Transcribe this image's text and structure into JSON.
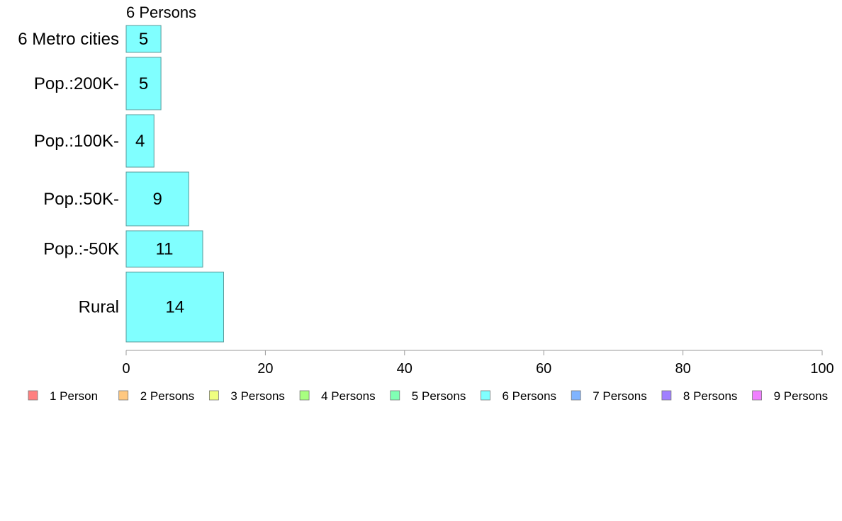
{
  "chart_data": {
    "type": "bar",
    "orientation": "horizontal",
    "title": "6 Persons",
    "categories": [
      "6 Metro cities",
      "Pop.:200K-",
      "Pop.:100K-",
      "Pop.:50K-",
      "Pop.:-50K",
      "Rural"
    ],
    "relative_bar_heights": [
      1,
      1.95,
      1.95,
      2,
      1.35,
      2.6
    ],
    "series": [
      {
        "name": "6 Persons",
        "values": [
          5,
          5,
          4,
          9,
          11,
          14
        ],
        "color": "#80FFFF"
      }
    ],
    "xlim": [
      0,
      100
    ],
    "xticks": [
      0,
      20,
      40,
      60,
      80,
      100
    ],
    "xlabel": "",
    "ylabel": "",
    "grid": false,
    "legend": {
      "placement": "bottom",
      "entries": [
        {
          "label": "1 Person",
          "color": "#FF8080"
        },
        {
          "label": "2 Persons",
          "color": "#FFC880"
        },
        {
          "label": "3 Persons",
          "color": "#F0FF80"
        },
        {
          "label": "4 Persons",
          "color": "#A8FF80"
        },
        {
          "label": "5 Persons",
          "color": "#80FFB4"
        },
        {
          "label": "6 Persons",
          "color": "#80FFFF"
        },
        {
          "label": "7 Persons",
          "color": "#80B4FF"
        },
        {
          "label": "8 Persons",
          "color": "#A080FF"
        },
        {
          "label": "9 Persons",
          "color": "#F080FF"
        }
      ]
    },
    "bar_stroke_color": "#5A9A9A",
    "axis_color": "#999999"
  }
}
